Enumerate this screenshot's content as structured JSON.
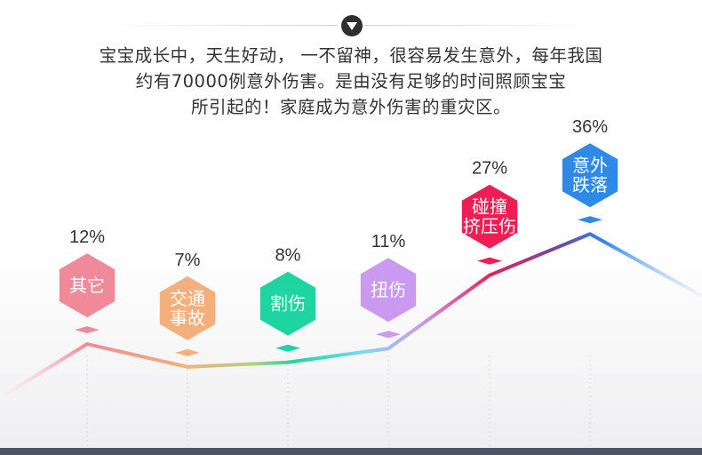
{
  "intro": {
    "lines": [
      "宝宝成长中，天生好动， 一不留神，很容易发生意外，每年我国",
      "约有70000例意外伤害。是由没有足够的时间照顾宝宝",
      "所引起的！家庭成为意外伤害的重灾区。"
    ]
  },
  "chart_data": {
    "type": "line",
    "categories": [
      "其它",
      "交通\n事故",
      "割伤",
      "扭伤",
      "碰撞\n挤压伤",
      "意外\n跌落"
    ],
    "values": [
      12,
      7,
      8,
      11,
      27,
      36
    ],
    "value_labels": [
      "12%",
      "7%",
      "8%",
      "11%",
      "27%",
      "36%"
    ],
    "unit": "%",
    "colors": [
      "#f08a9b",
      "#f3b07c",
      "#1ed4a0",
      "#c99af0",
      "#ee1d54",
      "#2f89e6"
    ]
  }
}
